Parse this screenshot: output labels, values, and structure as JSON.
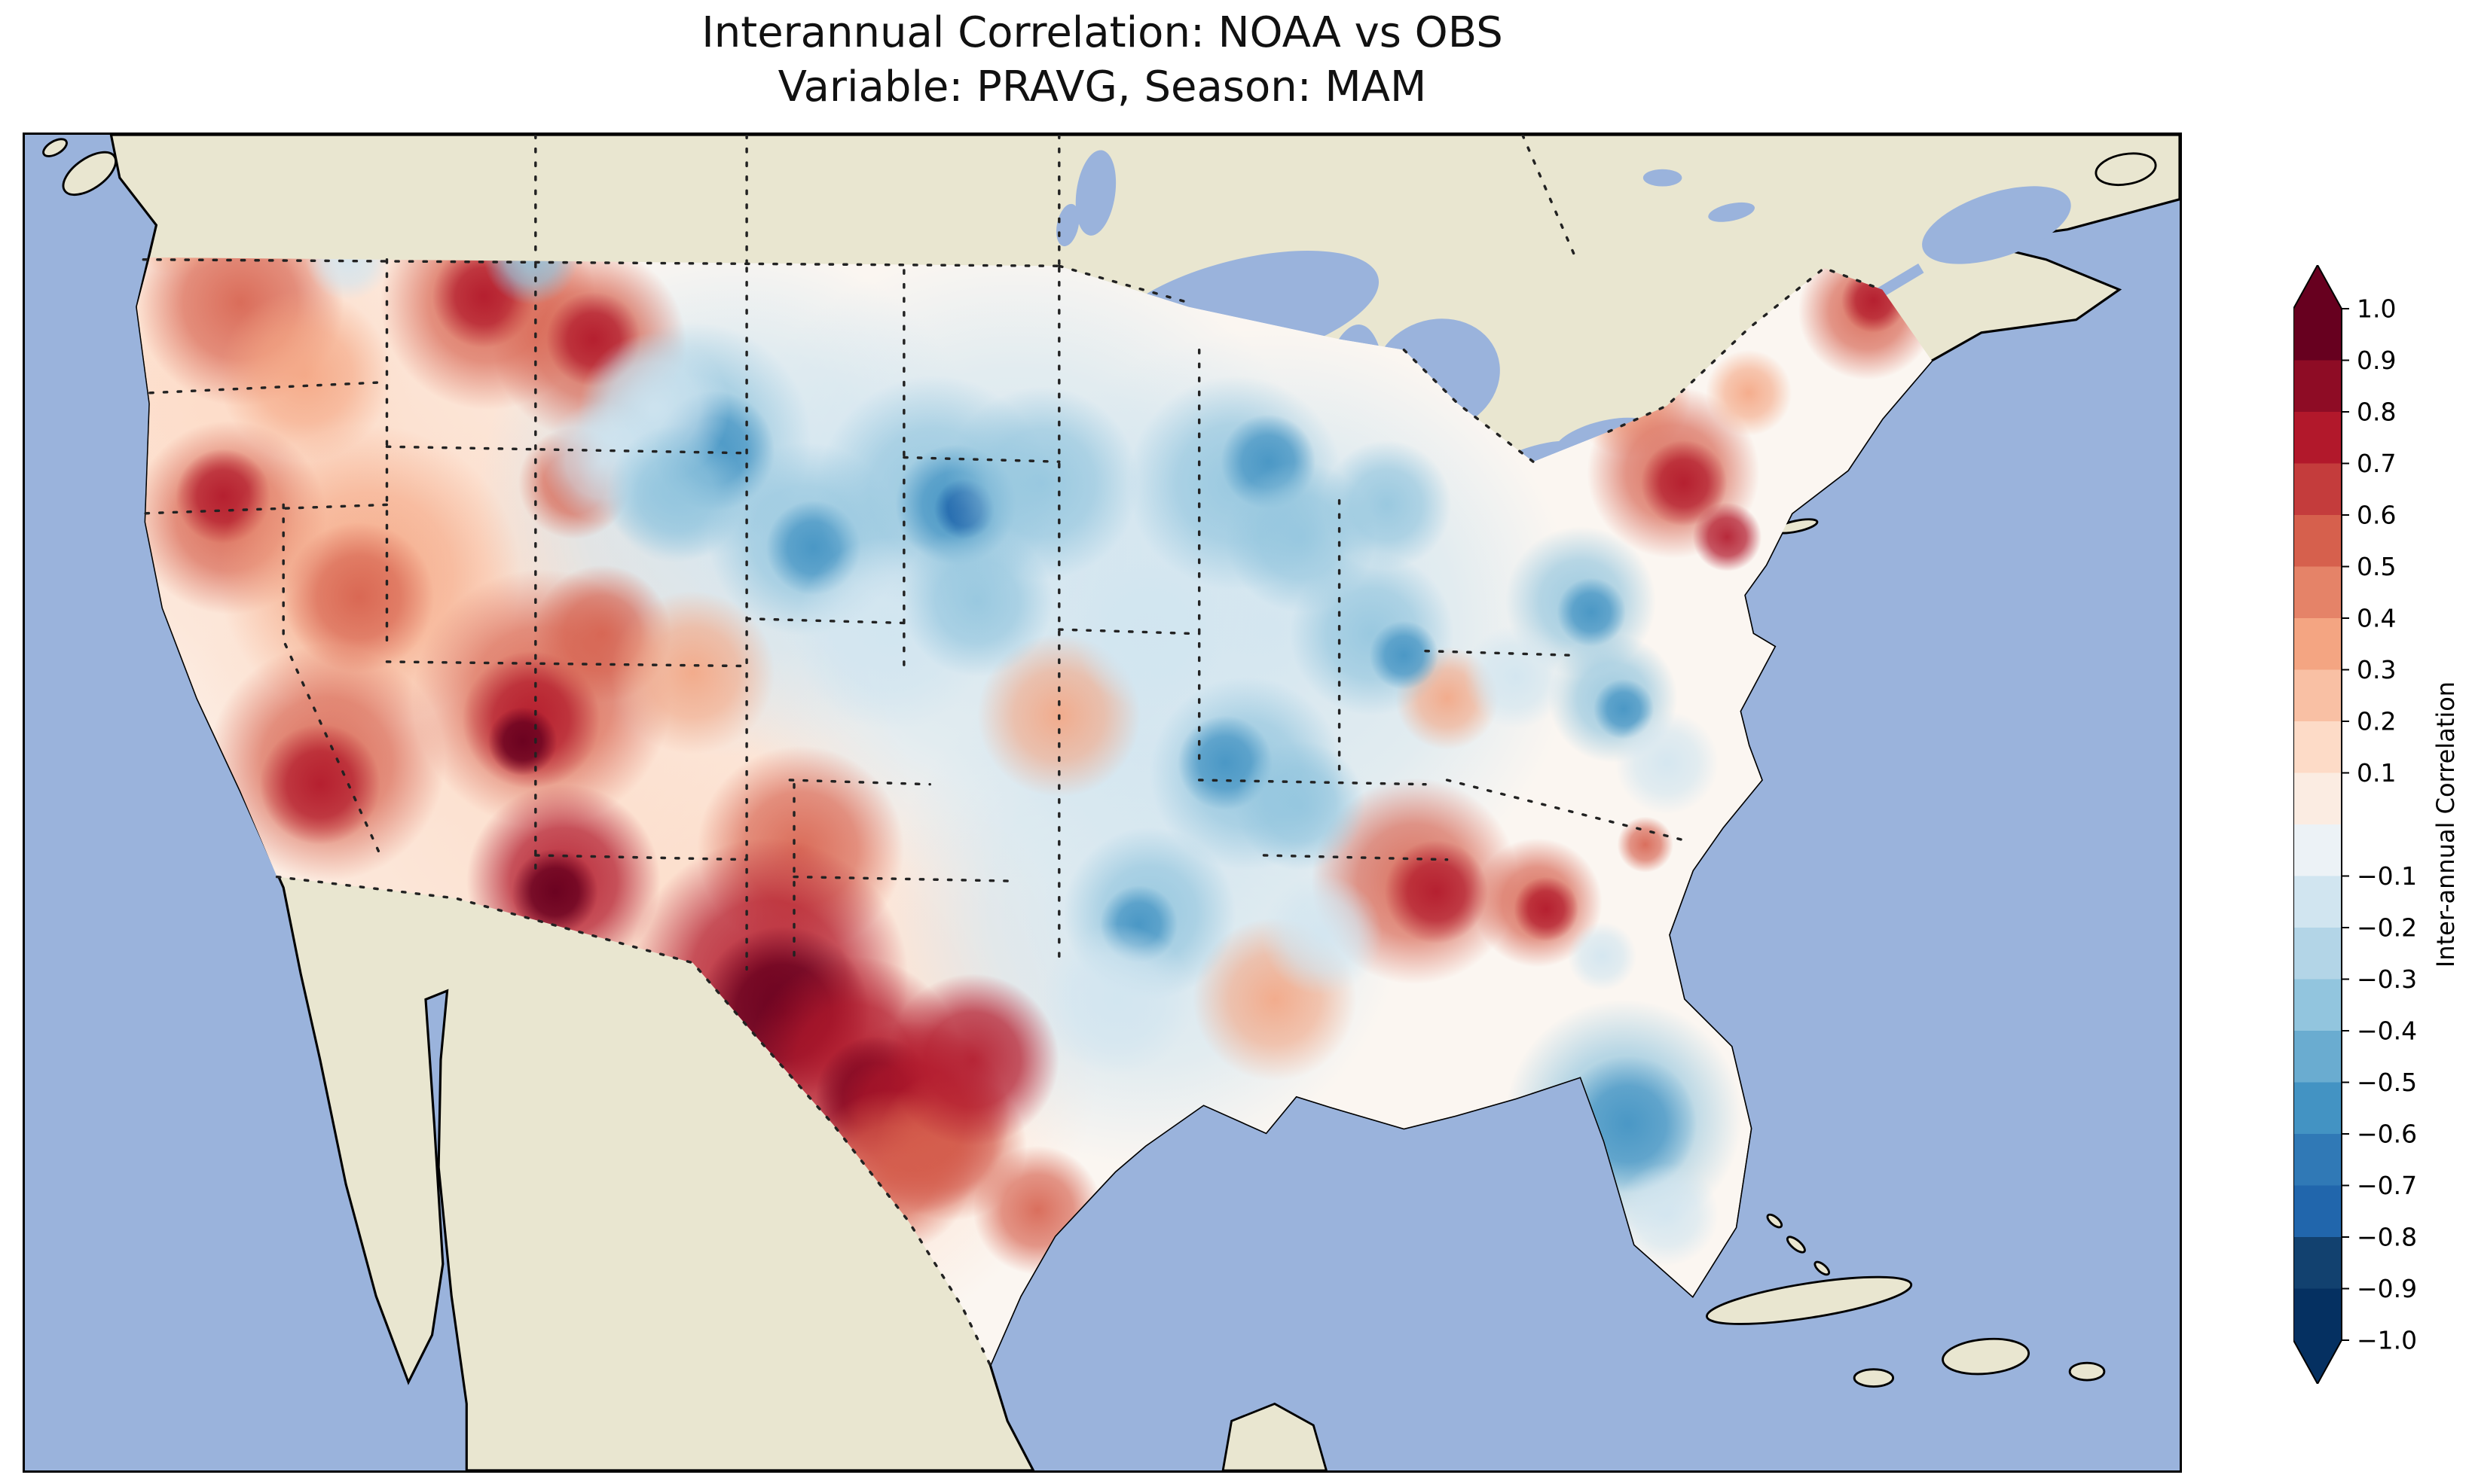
{
  "title": {
    "line1": "Interannual Correlation: NOAA vs OBS",
    "line2": "Variable: PRAVG, Season: MAM"
  },
  "map": {
    "ocean_color": "#9ab3dc",
    "land_color": "#e9e6d0",
    "field_base_color": "#fbf6f1",
    "frame_color": "#000000",
    "border_style": "dotted"
  },
  "colorbar": {
    "label": "Inter-annual Correlation",
    "over_color": "#67001f",
    "under_color": "#053061",
    "colors": [
      "#67001f",
      "#8e0c25",
      "#b2182b",
      "#c43c3c",
      "#d6604d",
      "#e58368",
      "#f4a582",
      "#f9c0a4",
      "#fddbc7",
      "#fbece2",
      "#ecf2f6",
      "#d1e5f0",
      "#b3d5e7",
      "#92c5de",
      "#6aacd0",
      "#4393c3",
      "#3079b6",
      "#2166ac",
      "#12416f",
      "#053061"
    ],
    "ticks": [
      {
        "label": "1.0",
        "value": 1.0
      },
      {
        "label": "0.9",
        "value": 0.9
      },
      {
        "label": "0.8",
        "value": 0.8
      },
      {
        "label": "0.7",
        "value": 0.7
      },
      {
        "label": "0.6",
        "value": 0.6
      },
      {
        "label": "0.5",
        "value": 0.5
      },
      {
        "label": "0.4",
        "value": 0.4
      },
      {
        "label": "0.3",
        "value": 0.3
      },
      {
        "label": "0.2",
        "value": 0.2
      },
      {
        "label": "0.1",
        "value": 0.1
      },
      {
        "label": "−0.1",
        "value": -0.1
      },
      {
        "label": "−0.2",
        "value": -0.2
      },
      {
        "label": "−0.3",
        "value": -0.3
      },
      {
        "label": "−0.4",
        "value": -0.4
      },
      {
        "label": "−0.5",
        "value": -0.5
      },
      {
        "label": "−0.6",
        "value": -0.6
      },
      {
        "label": "−0.7",
        "value": -0.7
      },
      {
        "label": "−0.8",
        "value": -0.8
      },
      {
        "label": "−0.9",
        "value": -0.9
      },
      {
        "label": "−1.0",
        "value": -1.0
      }
    ]
  },
  "chart_data": {
    "type": "heatmap",
    "subtype": "filled-contour-correlation-map",
    "title": "Interannual Correlation: NOAA vs OBS",
    "subtitle": "Variable: PRAVG, Season: MAM",
    "variable": "PRAVG",
    "season": "MAM",
    "datasets_compared": [
      "NOAA",
      "OBS"
    ],
    "metric": "Inter-annual Correlation",
    "region": "Contiguous United States with surrounding Canada, Mexico, Pacific, Atlantic and Gulf of Mexico",
    "colormap": "RdBu_r",
    "value_range": [
      -1.0,
      1.0
    ],
    "contour_interval": 0.1,
    "colorbar_extend": "both",
    "colorbar_position": "right",
    "notable_regions": [
      {
        "area": "West Texas / Edwards Plateau",
        "correlation": 0.9
      },
      {
        "area": "Central and South Texas",
        "correlation": 0.7
      },
      {
        "area": "Southern New Mexico",
        "correlation": 0.7
      },
      {
        "area": "Four Corners (NM/CO/AZ/UT)",
        "correlation": 0.6
      },
      {
        "area": "Great Basin (Nevada/Utah)",
        "correlation": 0.4
      },
      {
        "area": "Sierra Nevada / eastern California",
        "correlation": 0.5
      },
      {
        "area": "Southern California / western Arizona",
        "correlation": 0.5
      },
      {
        "area": "Central Idaho",
        "correlation": 0.7
      },
      {
        "area": "North-central Montana",
        "correlation": 0.6
      },
      {
        "area": "Pacific Northwest interior",
        "correlation": 0.4
      },
      {
        "area": "Oklahoma / northern Texas",
        "correlation": 0.5
      },
      {
        "area": "Missouri / central plains",
        "correlation": 0.3
      },
      {
        "area": "Montana-Dakotas northern plains",
        "correlation": -0.4
      },
      {
        "area": "Minnesota / eastern Dakotas",
        "correlation": -0.5
      },
      {
        "area": "Wisconsin / Upper Michigan",
        "correlation": -0.4
      },
      {
        "area": "Ohio Valley (Indiana/Ohio)",
        "correlation": -0.3
      },
      {
        "area": "Kentucky / Tennessee",
        "correlation": -0.4
      },
      {
        "area": "Lower Mississippi Valley",
        "correlation": -0.3
      },
      {
        "area": "Mid-Atlantic coast (MD/VA)",
        "correlation": -0.5
      },
      {
        "area": "Coastal Carolinas",
        "correlation": -0.3
      },
      {
        "area": "Pennsylvania / New Jersey",
        "correlation": 0.6
      },
      {
        "area": "Maine",
        "correlation": 0.5
      },
      {
        "area": "Georgia / Alabama",
        "correlation": 0.6
      },
      {
        "area": "Florida peninsula",
        "correlation": -0.5
      }
    ]
  }
}
